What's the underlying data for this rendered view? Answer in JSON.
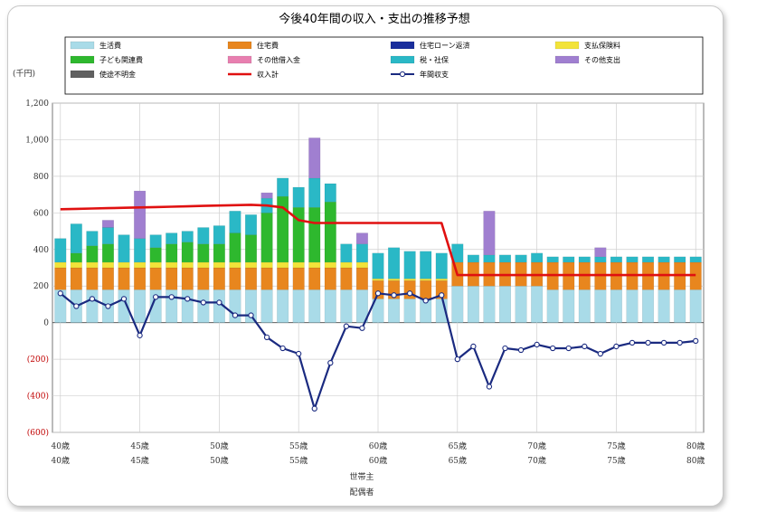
{
  "chart_data": {
    "type": "bar",
    "title": "今後40年間の収入・支出の推移予想",
    "unit_label": "(千円)",
    "ylim": [
      -600,
      1200
    ],
    "yticks": [
      1200,
      1000,
      800,
      600,
      400,
      200,
      0,
      -200,
      -400,
      -600
    ],
    "ytick_labels": [
      "1,200",
      "1,000",
      "800",
      "600",
      "400",
      "200",
      "0",
      "(200)",
      "(400)",
      "(600)"
    ],
    "x_tick_labels": [
      {
        "index": 0,
        "top": "40歳",
        "bottom": "40歳"
      },
      {
        "index": 5,
        "top": "45歳",
        "bottom": "45歳"
      },
      {
        "index": 10,
        "top": "50歳",
        "bottom": "50歳"
      },
      {
        "index": 15,
        "top": "55歳",
        "bottom": "55歳"
      },
      {
        "index": 20,
        "top": "60歳",
        "bottom": "60歳"
      },
      {
        "index": 25,
        "top": "65歳",
        "bottom": "65歳"
      },
      {
        "index": 30,
        "top": "70歳",
        "bottom": "70歳"
      },
      {
        "index": 35,
        "top": "75歳",
        "bottom": "75歳"
      },
      {
        "index": 40,
        "top": "80歳",
        "bottom": "80歳"
      }
    ],
    "x_axis_labels": [
      "世帯主",
      "配偶者"
    ],
    "grid": true,
    "legend_position": "top",
    "categories": [
      "40",
      "41",
      "42",
      "43",
      "44",
      "45",
      "46",
      "47",
      "48",
      "49",
      "50",
      "51",
      "52",
      "53",
      "54",
      "55",
      "56",
      "57",
      "58",
      "59",
      "60",
      "61",
      "62",
      "63",
      "64",
      "65",
      "66",
      "67",
      "68",
      "69",
      "70",
      "71",
      "72",
      "73",
      "74",
      "75",
      "76",
      "77",
      "78",
      "79",
      "80"
    ],
    "stacked_series": [
      {
        "name": "生活費",
        "color": "#a9dbe8",
        "values": [
          180,
          180,
          180,
          180,
          180,
          180,
          180,
          180,
          180,
          180,
          180,
          180,
          180,
          180,
          180,
          180,
          180,
          180,
          180,
          180,
          130,
          130,
          130,
          130,
          130,
          200,
          200,
          200,
          200,
          200,
          200,
          180,
          180,
          180,
          180,
          180,
          180,
          180,
          180,
          180,
          180
        ]
      },
      {
        "name": "住宅費",
        "color": "#e8861e",
        "values": [
          120,
          120,
          120,
          120,
          120,
          120,
          120,
          120,
          120,
          120,
          120,
          120,
          120,
          120,
          120,
          120,
          120,
          120,
          120,
          120,
          100,
          100,
          100,
          100,
          100,
          130,
          130,
          130,
          130,
          130,
          130,
          150,
          150,
          150,
          150,
          150,
          150,
          150,
          150,
          150,
          150
        ]
      },
      {
        "name": "住宅ローン返済",
        "color": "#1a2e9c",
        "values": [
          0,
          0,
          0,
          0,
          0,
          0,
          0,
          0,
          0,
          0,
          0,
          0,
          0,
          0,
          0,
          0,
          0,
          0,
          0,
          0,
          0,
          0,
          0,
          0,
          0,
          0,
          0,
          0,
          0,
          0,
          0,
          0,
          0,
          0,
          0,
          0,
          0,
          0,
          0,
          0,
          0
        ]
      },
      {
        "name": "支払保険料",
        "color": "#f2e33a",
        "values": [
          30,
          30,
          30,
          30,
          30,
          30,
          30,
          30,
          30,
          30,
          30,
          30,
          30,
          30,
          30,
          30,
          30,
          30,
          30,
          30,
          10,
          10,
          10,
          10,
          10,
          0,
          0,
          0,
          0,
          0,
          0,
          0,
          0,
          0,
          0,
          0,
          0,
          0,
          0,
          0,
          0
        ]
      },
      {
        "name": "子ども関連費",
        "color": "#2eb82e",
        "values": [
          0,
          50,
          90,
          100,
          0,
          0,
          80,
          100,
          110,
          100,
          100,
          160,
          150,
          270,
          360,
          300,
          300,
          330,
          0,
          0,
          0,
          0,
          0,
          0,
          0,
          0,
          0,
          0,
          0,
          0,
          0,
          0,
          0,
          0,
          0,
          0,
          0,
          0,
          0,
          0,
          0
        ]
      },
      {
        "name": "その他借入金",
        "color": "#e87fb0",
        "values": [
          0,
          0,
          0,
          0,
          0,
          0,
          0,
          0,
          0,
          0,
          0,
          0,
          0,
          0,
          0,
          0,
          0,
          0,
          0,
          0,
          0,
          0,
          0,
          0,
          0,
          0,
          0,
          0,
          0,
          0,
          0,
          0,
          0,
          0,
          0,
          0,
          0,
          0,
          0,
          0,
          0
        ]
      },
      {
        "name": "税・社保",
        "color": "#2ab8c6",
        "values": [
          130,
          160,
          80,
          90,
          150,
          130,
          70,
          60,
          60,
          90,
          100,
          120,
          110,
          80,
          100,
          110,
          160,
          100,
          100,
          100,
          140,
          170,
          150,
          150,
          140,
          100,
          40,
          40,
          40,
          40,
          50,
          30,
          30,
          30,
          30,
          30,
          30,
          30,
          30,
          30,
          30
        ]
      },
      {
        "name": "その他支出",
        "color": "#a07fd0",
        "values": [
          0,
          0,
          0,
          40,
          0,
          260,
          0,
          0,
          0,
          0,
          0,
          0,
          0,
          30,
          0,
          0,
          220,
          0,
          0,
          60,
          0,
          0,
          0,
          0,
          0,
          0,
          0,
          240,
          0,
          0,
          0,
          0,
          0,
          0,
          50,
          0,
          0,
          0,
          0,
          0,
          0
        ]
      },
      {
        "name": "使途不明金",
        "color": "#606060",
        "values": [
          0,
          0,
          0,
          0,
          0,
          0,
          0,
          0,
          0,
          0,
          0,
          0,
          0,
          0,
          0,
          0,
          0,
          0,
          0,
          0,
          0,
          0,
          0,
          0,
          0,
          0,
          0,
          0,
          0,
          0,
          0,
          0,
          0,
          0,
          0,
          0,
          0,
          0,
          0,
          0,
          0
        ]
      }
    ],
    "line_series": [
      {
        "name": "収入計",
        "color": "#e01010",
        "values": [
          620,
          622,
          624,
          626,
          628,
          630,
          632,
          634,
          636,
          638,
          640,
          642,
          644,
          640,
          630,
          560,
          545,
          545,
          545,
          545,
          545,
          545,
          545,
          545,
          545,
          260,
          260,
          260,
          260,
          260,
          260,
          260,
          260,
          260,
          260,
          260,
          260,
          260,
          260,
          260,
          260
        ]
      },
      {
        "name": "年間収支",
        "color": "#1a2a80",
        "values": [
          160,
          90,
          130,
          90,
          130,
          -70,
          140,
          140,
          130,
          110,
          110,
          40,
          40,
          -80,
          -140,
          -170,
          -470,
          -220,
          -20,
          -30,
          160,
          150,
          160,
          120,
          150,
          -200,
          -130,
          -350,
          -140,
          -150,
          -120,
          -140,
          -140,
          -130,
          -170,
          -130,
          -110,
          -110,
          -110,
          -110,
          -100
        ]
      }
    ]
  }
}
